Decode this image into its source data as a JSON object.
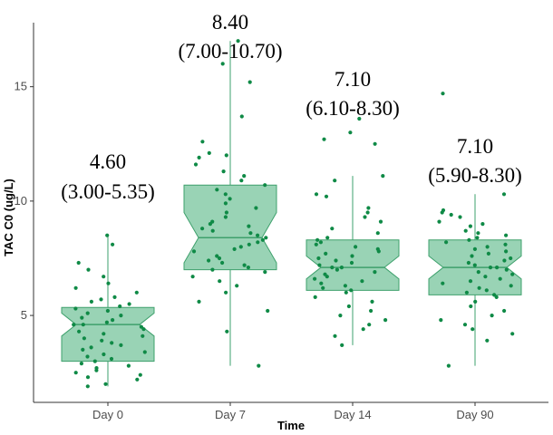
{
  "chart_data": {
    "type": "boxplot",
    "xlabel": "Time",
    "ylabel": "TAC C0 (ug/L)",
    "ylim": [
      1.2,
      17.8
    ],
    "yticks": [
      5,
      10,
      15
    ],
    "grid": false,
    "notched": true,
    "colors": {
      "box_fill": "#99d3b5",
      "box_stroke": "#3ea06c",
      "point": "#0f8a46",
      "axis": "#333333"
    },
    "categories": [
      "Day 0",
      "Day 7",
      "Day 14",
      "Day 90"
    ],
    "boxes": [
      {
        "category": "Day 0",
        "q1": 3.0,
        "median": 4.6,
        "q3": 5.35,
        "whisker_low": 1.9,
        "whisker_high": 8.5,
        "notch_low": 4.1,
        "notch_high": 5.1
      },
      {
        "category": "Day 7",
        "q1": 7.0,
        "median": 8.4,
        "q3": 10.7,
        "whisker_low": 2.8,
        "whisker_high": 17.0,
        "notch_low": 7.3,
        "notch_high": 9.5
      },
      {
        "category": "Day 14",
        "q1": 6.1,
        "median": 7.1,
        "q3": 8.3,
        "whisker_low": 3.7,
        "whisker_high": 11.1,
        "notch_low": 6.6,
        "notch_high": 7.6
      },
      {
        "category": "Day 90",
        "q1": 5.9,
        "median": 7.1,
        "q3": 8.3,
        "whisker_low": 2.8,
        "whisker_high": 10.3,
        "notch_low": 6.6,
        "notch_high": 7.6
      }
    ],
    "annotations": [
      {
        "category": "Day 0",
        "median_label": "4.60",
        "iqr_label": "(3.00-5.35)"
      },
      {
        "category": "Day 7",
        "median_label": "8.40",
        "iqr_label": "(7.00-10.70)"
      },
      {
        "category": "Day 14",
        "median_label": "7.10",
        "iqr_label": "(6.10-8.30)"
      },
      {
        "category": "Day 90",
        "median_label": "7.10",
        "iqr_label": "(5.90-8.30)"
      }
    ],
    "points": [
      {
        "category": "Day 0",
        "values": [
          8.5,
          8.1,
          7.3,
          7.0,
          6.7,
          6.4,
          6.2,
          6.0,
          5.8,
          5.7,
          5.6,
          5.5,
          5.4,
          5.3,
          5.2,
          5.1,
          5.0,
          4.9,
          4.8,
          4.7,
          4.6,
          4.6,
          4.5,
          4.4,
          4.3,
          4.2,
          4.1,
          4.0,
          3.9,
          3.8,
          3.7,
          3.6,
          3.5,
          3.4,
          3.3,
          3.2,
          3.1,
          3.0,
          2.9,
          2.8,
          2.7,
          2.6,
          2.5,
          2.4,
          2.3,
          2.2,
          2.0,
          1.9
        ]
      },
      {
        "category": "Day 7",
        "values": [
          17.0,
          16.0,
          15.2,
          13.7,
          12.6,
          12.1,
          12.0,
          11.9,
          11.6,
          11.3,
          11.1,
          10.9,
          10.7,
          10.5,
          10.3,
          10.1,
          9.9,
          9.7,
          9.5,
          9.3,
          9.1,
          9.0,
          8.9,
          8.8,
          8.7,
          8.6,
          8.5,
          8.4,
          8.3,
          8.2,
          8.1,
          8.0,
          7.9,
          7.8,
          7.6,
          7.5,
          7.4,
          7.3,
          7.2,
          7.1,
          7.0,
          6.9,
          6.7,
          6.5,
          6.3,
          6.0,
          5.6,
          5.2,
          4.3,
          2.8
        ]
      },
      {
        "category": "Day 14",
        "values": [
          13.6,
          13.0,
          12.7,
          12.5,
          11.1,
          10.9,
          10.3,
          10.2,
          9.7,
          9.5,
          9.3,
          9.1,
          8.8,
          8.6,
          8.4,
          8.3,
          8.2,
          8.1,
          8.0,
          7.9,
          7.8,
          7.7,
          7.6,
          7.5,
          7.4,
          7.3,
          7.2,
          7.1,
          7.1,
          7.0,
          6.9,
          6.8,
          6.7,
          6.6,
          6.5,
          6.4,
          6.3,
          6.2,
          6.1,
          6.0,
          5.8,
          5.6,
          5.4,
          5.2,
          5.0,
          4.8,
          4.6,
          4.4,
          4.1,
          3.7
        ]
      },
      {
        "category": "Day 90",
        "values": [
          14.7,
          10.3,
          9.6,
          9.5,
          9.4,
          9.3,
          9.1,
          9.0,
          8.9,
          8.7,
          8.6,
          8.5,
          8.4,
          8.3,
          8.2,
          8.1,
          8.0,
          7.9,
          7.8,
          7.7,
          7.6,
          7.5,
          7.4,
          7.3,
          7.2,
          7.1,
          7.1,
          7.0,
          6.9,
          6.8,
          6.7,
          6.6,
          6.5,
          6.4,
          6.3,
          6.2,
          6.1,
          6.0,
          5.9,
          5.8,
          5.6,
          5.4,
          5.2,
          5.0,
          4.8,
          4.6,
          4.4,
          4.2,
          3.9,
          2.8
        ]
      }
    ]
  }
}
